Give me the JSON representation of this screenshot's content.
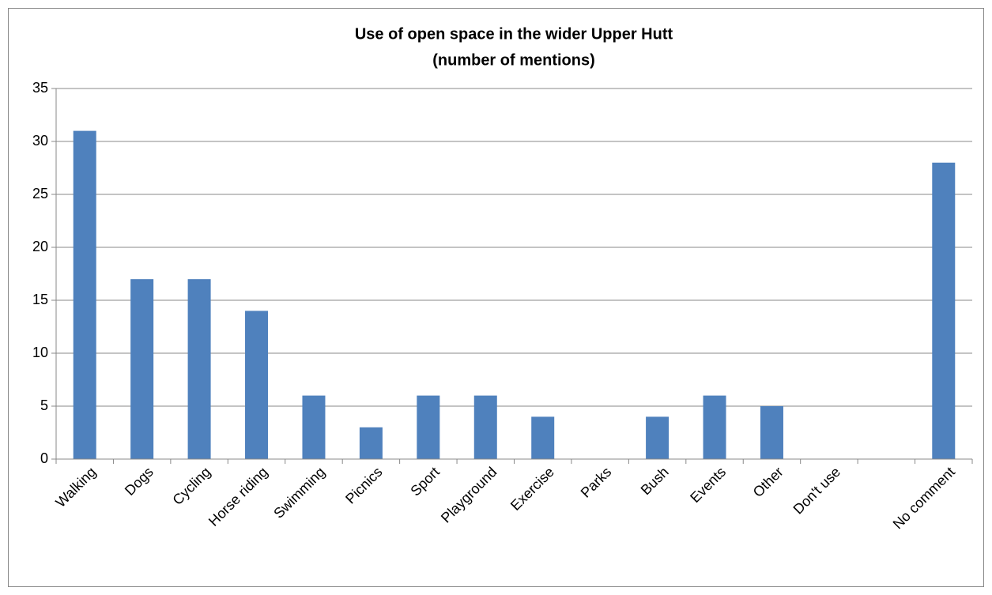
{
  "chart_data": {
    "type": "bar",
    "title": "Use of open space in the wider Upper Hutt",
    "subtitle": "(number of mentions)",
    "categories": [
      "Walking",
      "Dogs",
      "Cycling",
      "Horse riding",
      "Swimming",
      "Picnics",
      "Sport",
      "Playground",
      "Exercise",
      "Parks",
      "Bush",
      "Events",
      "Other",
      "Don't use",
      null,
      "No comment"
    ],
    "values": [
      31,
      17,
      17,
      14,
      6,
      3,
      6,
      6,
      4,
      0,
      4,
      6,
      5,
      0,
      null,
      28
    ],
    "color": "#4f81bd",
    "ylim": [
      0,
      35
    ],
    "yticks": [
      0,
      5,
      10,
      15,
      20,
      25,
      30,
      35
    ],
    "grid": true
  }
}
